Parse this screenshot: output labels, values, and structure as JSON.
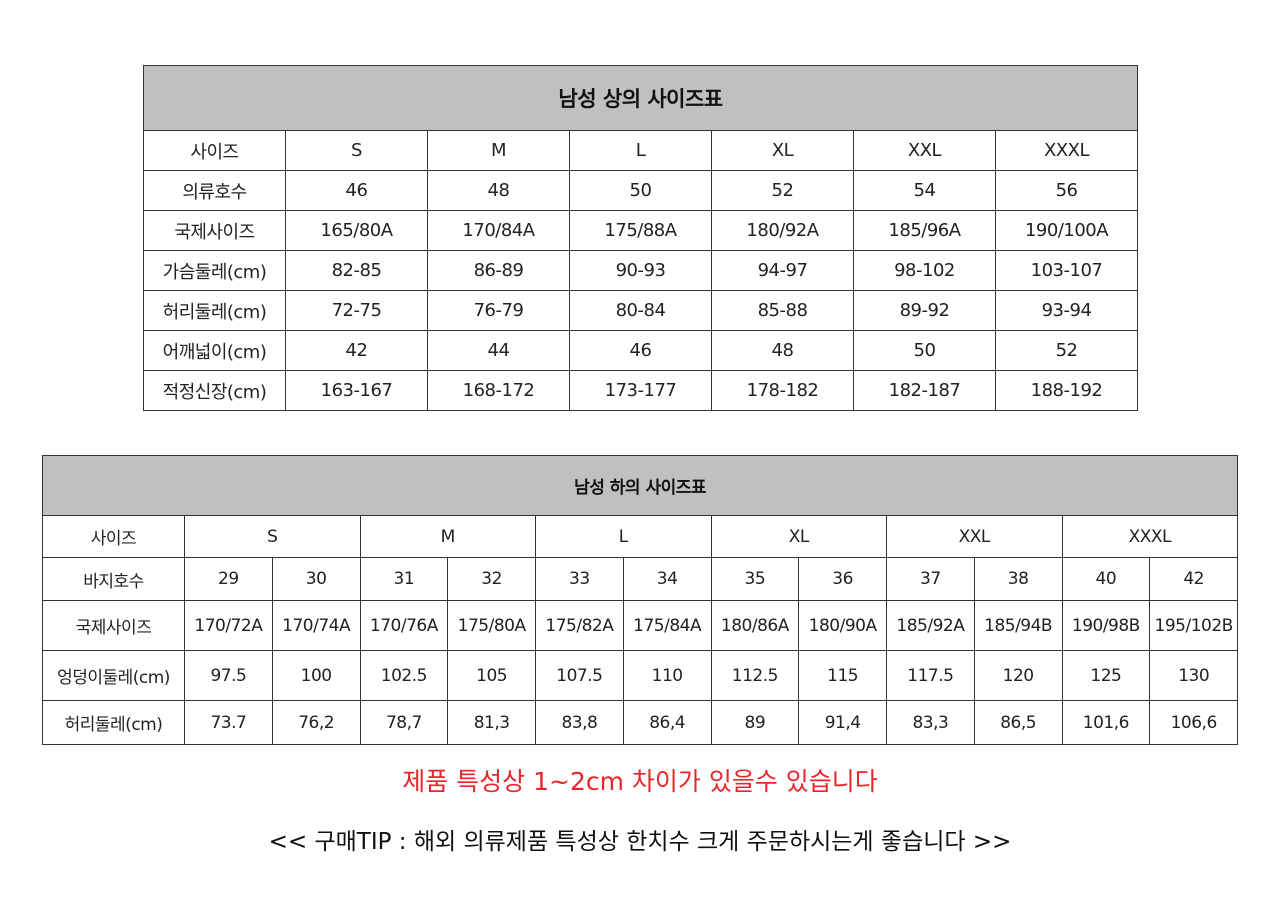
{
  "top_table": {
    "title": "남성 상의 사이즈표",
    "rows": [
      [
        "사이즈",
        "S",
        "M",
        "L",
        "XL",
        "XXL",
        "XXXL"
      ],
      [
        "의류호수",
        "46",
        "48",
        "50",
        "52",
        "54",
        "56"
      ],
      [
        "국제사이즈",
        "165/80A",
        "170/84A",
        "175/88A",
        "180/92A",
        "185/96A",
        "190/100A"
      ],
      [
        "가슴둘레(cm)",
        "82-85",
        "86-89",
        "90-93",
        "94-97",
        "98-102",
        "103-107"
      ],
      [
        "허리둘레(cm)",
        "72-75",
        "76-79",
        "80-84",
        "85-88",
        "89-92",
        "93-94"
      ],
      [
        "어깨넓이(cm)",
        "42",
        "44",
        "46",
        "48",
        "50",
        "52"
      ],
      [
        "적정신장(cm)",
        "163-167",
        "168-172",
        "173-177",
        "178-182",
        "182-187",
        "188-192"
      ]
    ]
  },
  "bottom_table": {
    "title": "남성 하의 사이즈표",
    "size_header": [
      "사이즈",
      "S",
      "M",
      "L",
      "XL",
      "XXL",
      "XXXL"
    ],
    "rows": [
      [
        "바지호수",
        "29",
        "30",
        "31",
        "32",
        "33",
        "34",
        "35",
        "36",
        "37",
        "38",
        "40",
        "42"
      ],
      [
        "국제사이즈",
        "170/72A",
        "170/74A",
        "170/76A",
        "175/80A",
        "175/82A",
        "175/84A",
        "180/86A",
        "180/90A",
        "185/92A",
        "185/94B",
        "190/98B",
        "195/102B"
      ],
      [
        "엉덩이둘레(cm)",
        "97.5",
        "100",
        "102.5",
        "105",
        "107.5",
        "110",
        "112.5",
        "115",
        "117.5",
        "120",
        "125",
        "130"
      ],
      [
        "허리둘레(cm)",
        "73.7",
        "76,2",
        "78,7",
        "81,3",
        "83,8",
        "86,4",
        "89",
        "91,4",
        "83,3",
        "86,5",
        "101,6",
        "106,6"
      ]
    ]
  },
  "notes": {
    "warning": "제품 특성상 1~2cm 차이가 있을수 있습니다",
    "tip": "<< 구매TIP : 해외 의류제품 특성상 한치수 크게 주문하시는게 좋습니다 >>"
  },
  "colors": {
    "header_bg": "#c0c0c0",
    "warning": "#e8262c"
  }
}
